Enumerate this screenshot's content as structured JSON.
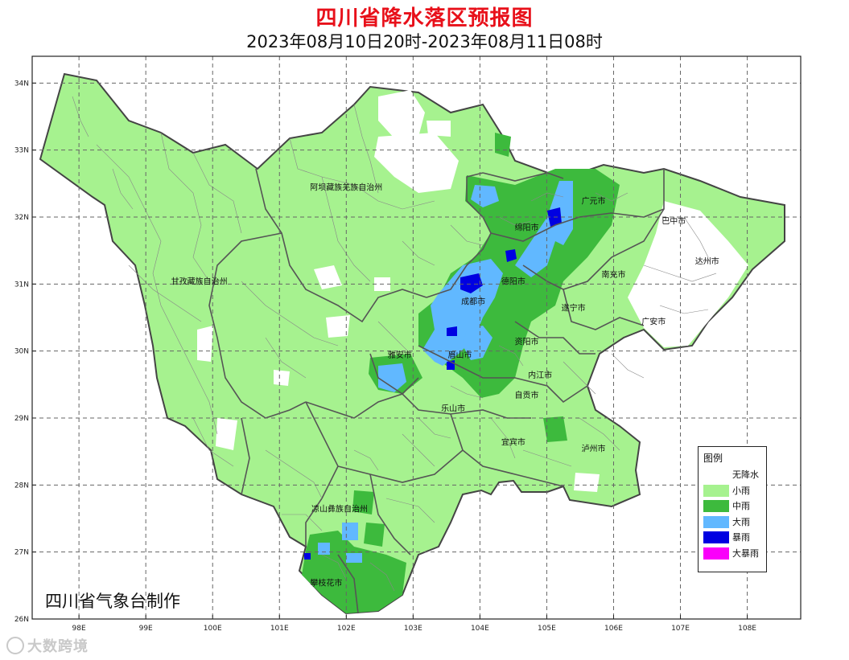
{
  "title": "四川省降水落区预报图",
  "subtitle": "2023年08月10日20时-2023年08月11日08时",
  "credit": "四川省气象台制作",
  "watermark": "大数跨境",
  "map": {
    "lon_range": [
      97.3,
      108.8
    ],
    "lat_range": [
      26.0,
      34.4
    ],
    "lon_ticks": [
      "98E",
      "99E",
      "100E",
      "101E",
      "102E",
      "103E",
      "104E",
      "105E",
      "106E",
      "107E",
      "108E"
    ],
    "lat_ticks": [
      "34N",
      "33N",
      "32N",
      "31N",
      "30N",
      "29N",
      "28N",
      "27N",
      "26N"
    ],
    "cities": [
      {
        "name": "阿坝藏族羌族自治州",
        "lon": 102.0,
        "lat": 32.4
      },
      {
        "name": "甘孜藏族自治州",
        "lon": 99.8,
        "lat": 31.0
      },
      {
        "name": "凉山彝族自治州",
        "lon": 101.9,
        "lat": 27.6
      },
      {
        "name": "广元市",
        "lon": 105.7,
        "lat": 32.2
      },
      {
        "name": "巴中市",
        "lon": 106.9,
        "lat": 31.9
      },
      {
        "name": "绵阳市",
        "lon": 104.7,
        "lat": 31.8
      },
      {
        "name": "达州市",
        "lon": 107.4,
        "lat": 31.3
      },
      {
        "name": "南充市",
        "lon": 106.0,
        "lat": 31.1
      },
      {
        "name": "德阳市",
        "lon": 104.5,
        "lat": 31.0
      },
      {
        "name": "成都市",
        "lon": 103.9,
        "lat": 30.7
      },
      {
        "name": "遂宁市",
        "lon": 105.4,
        "lat": 30.6
      },
      {
        "name": "广安市",
        "lon": 106.6,
        "lat": 30.4
      },
      {
        "name": "资阳市",
        "lon": 104.7,
        "lat": 30.1
      },
      {
        "name": "雅安市",
        "lon": 102.8,
        "lat": 29.9
      },
      {
        "name": "眉山市",
        "lon": 103.7,
        "lat": 29.9
      },
      {
        "name": "内江市",
        "lon": 104.9,
        "lat": 29.6
      },
      {
        "name": "自贡市",
        "lon": 104.7,
        "lat": 29.3
      },
      {
        "name": "乐山市",
        "lon": 103.6,
        "lat": 29.1
      },
      {
        "name": "宜宾市",
        "lon": 104.5,
        "lat": 28.6
      },
      {
        "name": "泸州市",
        "lon": 105.7,
        "lat": 28.5
      },
      {
        "name": "攀枝花市",
        "lon": 101.7,
        "lat": 26.5
      }
    ]
  },
  "legend": {
    "title": "图例",
    "items": [
      {
        "label": "无降水",
        "color": "#ffffff"
      },
      {
        "label": "小雨",
        "color": "#a6f28f"
      },
      {
        "label": "中雨",
        "color": "#3dba3d"
      },
      {
        "label": "大雨",
        "color": "#61b8ff"
      },
      {
        "label": "暴雨",
        "color": "#0000e1"
      },
      {
        "label": "大暴雨",
        "color": "#fa00fa"
      }
    ]
  }
}
